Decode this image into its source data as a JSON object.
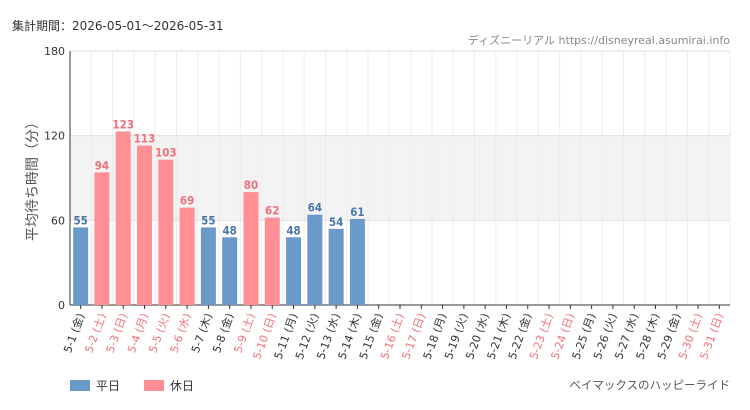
{
  "header": {
    "period": "集計期間：2026-05-01〜2026-05-31",
    "source": "ディズニーリアル https://disneyreal.asumirai.info",
    "attraction": "ベイマックスのハッピーライド"
  },
  "colors": {
    "weekday": "#6a9ac9",
    "holiday": "#ff8f94",
    "weekday_text": "#4a78ad",
    "holiday_text": "#f07078",
    "weekday_tick": "#333333",
    "holiday_tick": "#f07078",
    "band": "#f3f3f3"
  },
  "chart_data": {
    "type": "bar",
    "ylabel": "平均待ち時間（分）",
    "ylim": [
      0,
      180
    ],
    "yticks": [
      0,
      60,
      120,
      180
    ],
    "shaded_band": [
      60,
      120
    ],
    "legend": [
      {
        "name": "平日",
        "kind": "weekday"
      },
      {
        "name": "休日",
        "kind": "holiday"
      }
    ],
    "categories": [
      "5-1 (金)",
      "5-2 (土)",
      "5-3 (日)",
      "5-4 (月)",
      "5-5 (火)",
      "5-6 (水)",
      "5-7 (木)",
      "5-8 (金)",
      "5-9 (土)",
      "5-10 (日)",
      "5-11 (月)",
      "5-12 (火)",
      "5-13 (水)",
      "5-14 (木)",
      "5-15 (金)",
      "5-16 (土)",
      "5-17 (日)",
      "5-18 (月)",
      "5-19 (火)",
      "5-20 (水)",
      "5-21 (木)",
      "5-22 (金)",
      "5-23 (土)",
      "5-24 (日)",
      "5-25 (月)",
      "5-26 (火)",
      "5-27 (水)",
      "5-28 (木)",
      "5-29 (金)",
      "5-30 (土)",
      "5-31 (日)"
    ],
    "day_type": [
      "weekday",
      "holiday",
      "holiday",
      "holiday",
      "holiday",
      "holiday",
      "weekday",
      "weekday",
      "holiday",
      "holiday",
      "weekday",
      "weekday",
      "weekday",
      "weekday",
      "weekday",
      "holiday",
      "holiday",
      "weekday",
      "weekday",
      "weekday",
      "weekday",
      "weekday",
      "holiday",
      "holiday",
      "weekday",
      "weekday",
      "weekday",
      "weekday",
      "weekday",
      "holiday",
      "holiday"
    ],
    "values": [
      55,
      94,
      123,
      113,
      103,
      69,
      55,
      48,
      80,
      62,
      48,
      64,
      54,
      61,
      null,
      null,
      null,
      null,
      null,
      null,
      null,
      null,
      null,
      null,
      null,
      null,
      null,
      null,
      null,
      null,
      null
    ]
  }
}
